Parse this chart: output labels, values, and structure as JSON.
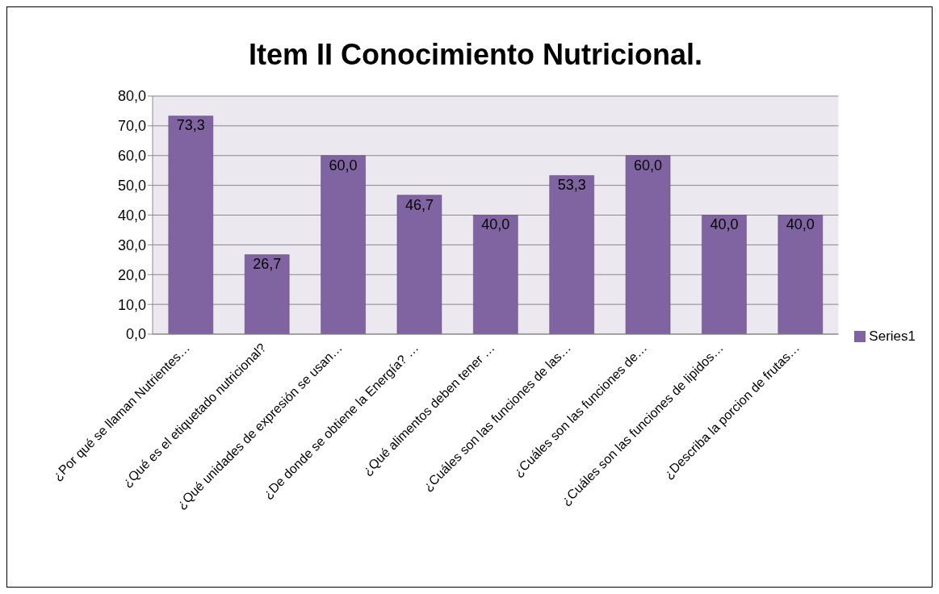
{
  "chart_data": {
    "type": "bar",
    "title": "Item II Conocimiento Nutricional.",
    "categories": [
      "¿Por qué se llaman Nutrientes…",
      "¿Qué es el etiquetado nutricional?",
      "¿Qué unidades de expresión se usan…",
      "¿De donde se obtiene la Energía? …",
      "¿Qué alimentos deben tener …",
      "¿Cuáles son las funciones de las…",
      "¿Cuáles son las funciones de…",
      "¿Cuáles son las funciones de lipidos…",
      "¿Describa la porcion de frutas…"
    ],
    "series": [
      {
        "name": "Series1",
        "color": "#8064a2",
        "values": [
          73.3,
          26.7,
          60.0,
          46.7,
          40.0,
          53.3,
          60.0,
          40.0,
          40.0
        ],
        "value_labels": [
          "73,3",
          "26,7",
          "60,0",
          "46,7",
          "40,0",
          "53,3",
          "60,0",
          "40,0",
          "40,0"
        ]
      }
    ],
    "ylim": [
      0,
      80
    ],
    "yticks": [
      {
        "value": 0,
        "label": "0,0"
      },
      {
        "value": 10,
        "label": "10,0"
      },
      {
        "value": 20,
        "label": "20,0"
      },
      {
        "value": 30,
        "label": "30,0"
      },
      {
        "value": 40,
        "label": "40,0"
      },
      {
        "value": 50,
        "label": "50,0"
      },
      {
        "value": 60,
        "label": "60,0"
      },
      {
        "value": 70,
        "label": "70,0"
      },
      {
        "value": 80,
        "label": "80,0"
      }
    ],
    "grid": "y",
    "legend": "right"
  }
}
